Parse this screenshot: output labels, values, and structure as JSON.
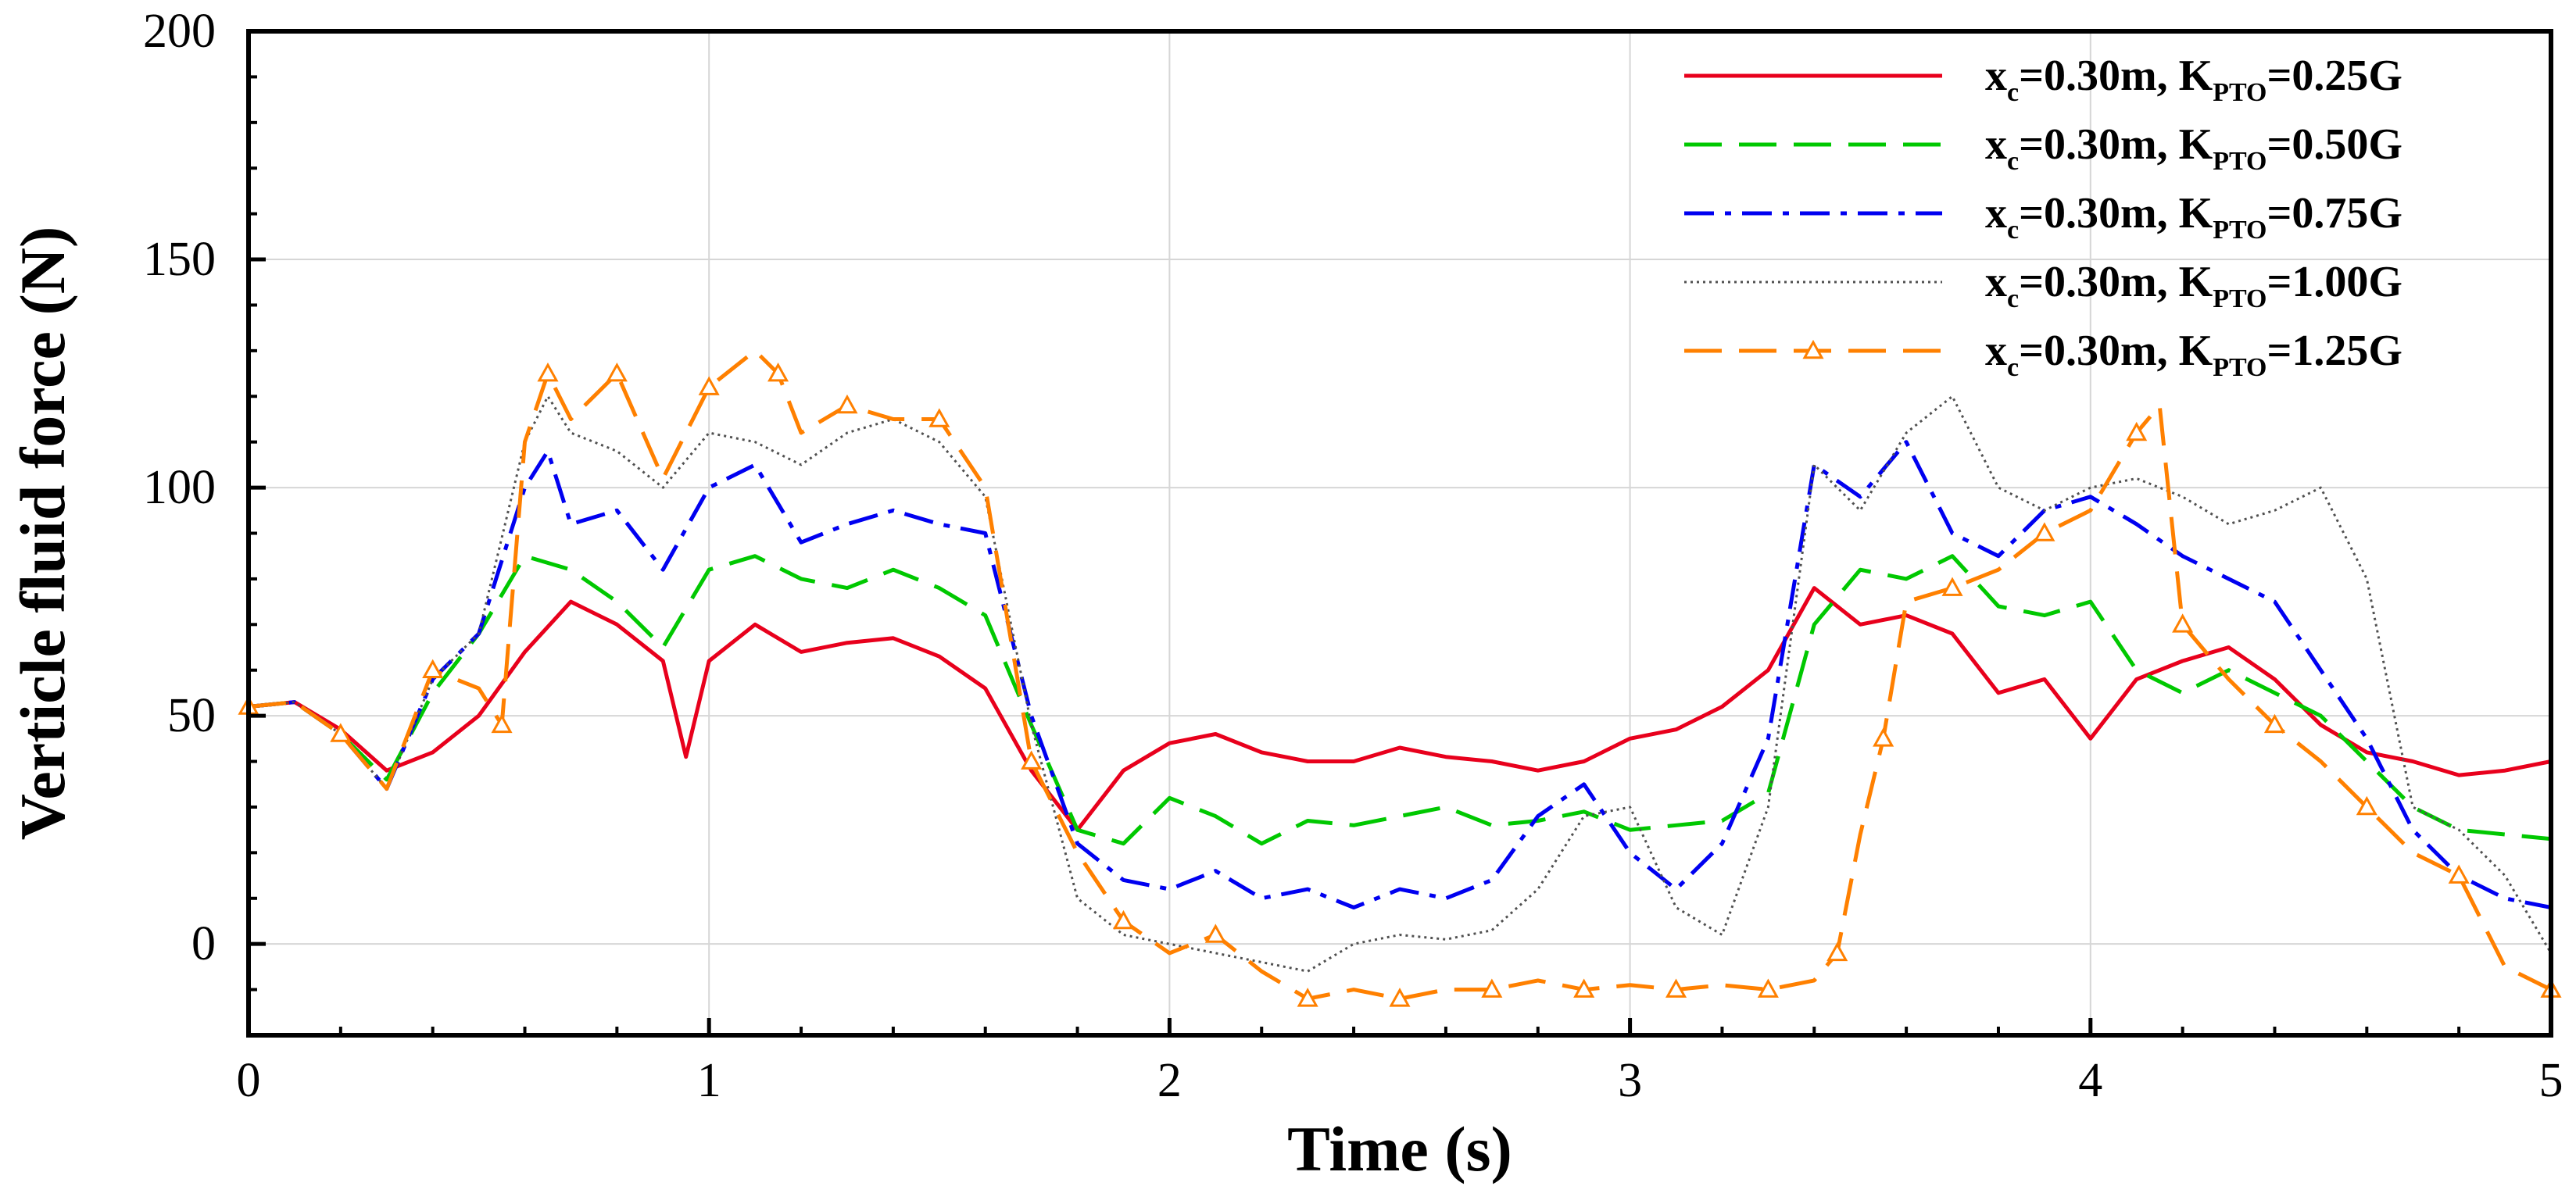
{
  "chart_data": {
    "type": "line",
    "title": "",
    "xlabel": "Time (s)",
    "ylabel": "Verticle fluid force (N)",
    "xlim": [
      0,
      5
    ],
    "ylim": [
      -20,
      200
    ],
    "xticks": [
      "0",
      "1",
      "2",
      "3",
      "4",
      "5"
    ],
    "yticks": [
      "0",
      "50",
      "100",
      "150",
      "200"
    ],
    "grid": true,
    "legend_position": "top-right",
    "series": [
      {
        "name": "xc=0.30m, KPTO=0.25G",
        "legend": {
          "x": "x",
          "xsub": "c",
          "mid": "=0.30m, K",
          "ksub": "PTO",
          "val": "=0.25G"
        },
        "color": "#e8001c",
        "dash": "",
        "marker": "",
        "x": [
          0,
          0.1,
          0.2,
          0.3,
          0.4,
          0.5,
          0.6,
          0.7,
          0.8,
          0.9,
          0.95,
          1.0,
          1.1,
          1.2,
          1.3,
          1.4,
          1.5,
          1.6,
          1.7,
          1.8,
          1.9,
          2.0,
          2.1,
          2.2,
          2.3,
          2.4,
          2.5,
          2.6,
          2.7,
          2.8,
          2.9,
          3.0,
          3.1,
          3.2,
          3.3,
          3.4,
          3.5,
          3.6,
          3.7,
          3.8,
          3.9,
          4.0,
          4.1,
          4.2,
          4.3,
          4.4,
          4.5,
          4.6,
          4.7,
          4.8,
          4.9,
          5.0
        ],
        "y": [
          52,
          53,
          47,
          38,
          42,
          50,
          64,
          75,
          70,
          62,
          41,
          62,
          70,
          64,
          66,
          67,
          63,
          56,
          38,
          25,
          38,
          44,
          46,
          42,
          40,
          40,
          43,
          41,
          40,
          38,
          40,
          45,
          47,
          52,
          60,
          78,
          70,
          72,
          68,
          55,
          58,
          45,
          58,
          62,
          65,
          58,
          48,
          42,
          40,
          37,
          38,
          40
        ]
      },
      {
        "name": "xc=0.30m, KPTO=0.50G",
        "legend": {
          "x": "x",
          "xsub": "c",
          "mid": "=0.30m, K",
          "ksub": "PTO",
          "val": "=0.50G"
        },
        "color": "#00c800",
        "dash": "48 22",
        "marker": "",
        "x": [
          0,
          0.1,
          0.2,
          0.3,
          0.4,
          0.5,
          0.6,
          0.7,
          0.8,
          0.9,
          1.0,
          1.1,
          1.2,
          1.3,
          1.4,
          1.5,
          1.6,
          1.7,
          1.8,
          1.9,
          2.0,
          2.1,
          2.2,
          2.3,
          2.4,
          2.5,
          2.6,
          2.7,
          2.8,
          2.9,
          3.0,
          3.1,
          3.2,
          3.3,
          3.4,
          3.5,
          3.6,
          3.7,
          3.8,
          3.9,
          4.0,
          4.1,
          4.2,
          4.3,
          4.4,
          4.5,
          4.6,
          4.7,
          4.8,
          4.9,
          5.0
        ],
        "y": [
          52,
          53,
          46,
          36,
          55,
          68,
          85,
          82,
          75,
          65,
          82,
          85,
          80,
          78,
          82,
          78,
          72,
          48,
          25,
          22,
          32,
          28,
          22,
          27,
          26,
          28,
          30,
          26,
          27,
          29,
          25,
          26,
          27,
          33,
          70,
          82,
          80,
          85,
          74,
          72,
          75,
          60,
          55,
          60,
          55,
          50,
          40,
          30,
          25,
          24,
          23
        ]
      },
      {
        "name": "xc=0.30m, KPTO=0.75G",
        "legend": {
          "x": "x",
          "xsub": "c",
          "mid": "=0.30m, K",
          "ksub": "PTO",
          "val": "=0.75G"
        },
        "color": "#0000f0",
        "dash": "38 14 8 14",
        "marker": "",
        "x": [
          0,
          0.1,
          0.2,
          0.3,
          0.4,
          0.5,
          0.6,
          0.65,
          0.7,
          0.8,
          0.9,
          1.0,
          1.1,
          1.2,
          1.3,
          1.4,
          1.5,
          1.6,
          1.7,
          1.8,
          1.9,
          2.0,
          2.1,
          2.2,
          2.3,
          2.4,
          2.5,
          2.6,
          2.7,
          2.8,
          2.9,
          3.0,
          3.1,
          3.2,
          3.3,
          3.4,
          3.5,
          3.6,
          3.7,
          3.8,
          3.9,
          4.0,
          4.1,
          4.2,
          4.3,
          4.4,
          4.5,
          4.6,
          4.7,
          4.8,
          4.9,
          5.0
        ],
        "y": [
          52,
          53,
          46,
          34,
          58,
          68,
          100,
          108,
          92,
          95,
          82,
          100,
          105,
          88,
          92,
          95,
          92,
          90,
          50,
          22,
          14,
          12,
          16,
          10,
          12,
          8,
          12,
          10,
          14,
          28,
          35,
          20,
          12,
          22,
          45,
          105,
          98,
          110,
          90,
          85,
          95,
          98,
          92,
          85,
          80,
          75,
          60,
          45,
          25,
          15,
          10,
          8
        ]
      },
      {
        "name": "xc=0.30m, KPTO=1.00G",
        "legend": {
          "x": "x",
          "xsub": "c",
          "mid": "=0.30m, K",
          "ksub": "PTO",
          "val": "=1.00G"
        },
        "color": "#505050",
        "dash": "3 5",
        "marker": "",
        "x": [
          0,
          0.1,
          0.2,
          0.3,
          0.4,
          0.5,
          0.6,
          0.65,
          0.7,
          0.8,
          0.9,
          1.0,
          1.1,
          1.2,
          1.3,
          1.4,
          1.5,
          1.6,
          1.7,
          1.8,
          1.9,
          2.0,
          2.1,
          2.2,
          2.3,
          2.4,
          2.5,
          2.6,
          2.7,
          2.8,
          2.9,
          3.0,
          3.1,
          3.2,
          3.3,
          3.4,
          3.5,
          3.6,
          3.7,
          3.8,
          3.9,
          4.0,
          4.1,
          4.2,
          4.3,
          4.4,
          4.5,
          4.6,
          4.7,
          4.8,
          4.9,
          5.0
        ],
        "y": [
          52,
          53,
          46,
          34,
          58,
          68,
          110,
          120,
          112,
          108,
          100,
          112,
          110,
          105,
          112,
          115,
          110,
          98,
          48,
          10,
          2,
          0,
          -2,
          -4,
          -6,
          0,
          2,
          1,
          3,
          12,
          28,
          30,
          8,
          2,
          30,
          105,
          95,
          112,
          120,
          100,
          95,
          100,
          102,
          98,
          92,
          95,
          100,
          80,
          30,
          25,
          15,
          -2
        ]
      },
      {
        "name": "xc=0.30m, KPTO=1.25G",
        "legend": {
          "x": "x",
          "xsub": "c",
          "mid": "=0.30m, K",
          "ksub": "PTO",
          "val": "=1.25G"
        },
        "color": "#ff8000",
        "dash": "48 22",
        "marker": "triangle",
        "x": [
          0,
          0.1,
          0.2,
          0.3,
          0.4,
          0.5,
          0.55,
          0.6,
          0.65,
          0.7,
          0.8,
          0.9,
          1.0,
          1.1,
          1.15,
          1.2,
          1.3,
          1.4,
          1.5,
          1.6,
          1.7,
          1.8,
          1.9,
          2.0,
          2.1,
          2.2,
          2.3,
          2.4,
          2.5,
          2.6,
          2.7,
          2.8,
          2.9,
          3.0,
          3.1,
          3.2,
          3.3,
          3.4,
          3.45,
          3.5,
          3.55,
          3.6,
          3.7,
          3.8,
          3.9,
          4.0,
          4.1,
          4.15,
          4.2,
          4.3,
          4.4,
          4.5,
          4.6,
          4.7,
          4.8,
          4.9,
          5.0
        ],
        "y": [
          52,
          53,
          46,
          34,
          60,
          56,
          48,
          110,
          125,
          115,
          125,
          102,
          122,
          130,
          125,
          112,
          118,
          115,
          115,
          100,
          40,
          20,
          5,
          -2,
          2,
          -6,
          -12,
          -10,
          -12,
          -10,
          -10,
          -8,
          -10,
          -9,
          -10,
          -9,
          -10,
          -8,
          -2,
          24,
          45,
          75,
          78,
          82,
          90,
          95,
          112,
          118,
          70,
          58,
          48,
          40,
          30,
          20,
          15,
          -5,
          -10
        ]
      }
    ]
  }
}
